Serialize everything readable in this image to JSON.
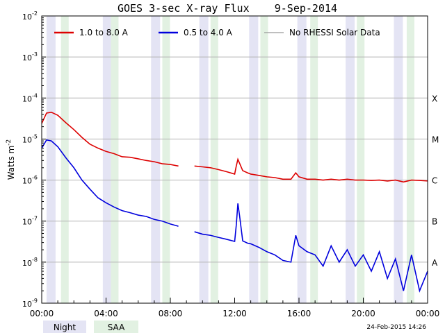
{
  "chart_data": {
    "type": "line",
    "title": "GOES 3-sec X-ray Flux    9-Sep-2014",
    "ylabel": "Watts m",
    "ylabel_superscript": "-2",
    "ylim": [
      1e-09,
      0.01
    ],
    "yscale": "log",
    "xlim_hours": [
      0,
      24
    ],
    "x_tick_labels": [
      "00:00",
      "04:00",
      "08:00",
      "12:00",
      "16:00",
      "20:00",
      "00:00"
    ],
    "y_tick_labels": [
      {
        "base": "10",
        "exp": "-9",
        "value": 1e-09
      },
      {
        "base": "10",
        "exp": "-8",
        "value": 1e-08
      },
      {
        "base": "10",
        "exp": "-7",
        "value": 1e-07
      },
      {
        "base": "10",
        "exp": "-6",
        "value": 1e-06
      },
      {
        "base": "10",
        "exp": "-5",
        "value": 1e-05
      },
      {
        "base": "10",
        "exp": "-4",
        "value": 0.0001
      },
      {
        "base": "10",
        "exp": "-3",
        "value": 0.001
      },
      {
        "base": "10",
        "exp": "-2",
        "value": 0.01
      }
    ],
    "flare_classes": [
      {
        "label": "A",
        "value": 1e-08
      },
      {
        "label": "B",
        "value": 1e-07
      },
      {
        "label": "C",
        "value": 1e-06
      },
      {
        "label": "M",
        "value": 1e-05
      },
      {
        "label": "X",
        "value": 0.0001
      }
    ],
    "grid": true,
    "legend_position": "top",
    "series": [
      {
        "name": "1.0 to 8.0 A",
        "color": "#dd0000",
        "x": [
          0.0,
          0.3,
          0.6,
          1.0,
          1.5,
          2.0,
          2.5,
          3.0,
          3.5,
          4.0,
          4.5,
          5.0,
          5.5,
          6.0,
          6.5,
          7.0,
          7.5,
          8.0,
          8.5,
          9.5,
          10.0,
          10.5,
          11.0,
          11.5,
          12.0,
          12.1,
          12.2,
          12.3,
          12.5,
          12.8,
          13.0,
          13.5,
          14.0,
          14.5,
          15.0,
          15.5,
          15.8,
          16.0,
          16.5,
          17.0,
          17.5,
          18.0,
          18.5,
          19.0,
          19.5,
          20.0,
          20.5,
          21.0,
          21.5,
          22.0,
          22.5,
          23.0,
          23.5,
          24.0
        ],
        "y": [
          2.4e-05,
          4.3e-05,
          4.5e-05,
          3.8e-05,
          2.5e-05,
          1.7e-05,
          1.1e-05,
          7.5e-06,
          6e-06,
          5e-06,
          4.4e-06,
          3.7e-06,
          3.6e-06,
          3.3e-06,
          3e-06,
          2.8e-06,
          2.5e-06,
          2.4e-06,
          2.2e-06,
          2.2e-06,
          2.1e-06,
          2e-06,
          1.8e-06,
          1.6e-06,
          1.4e-06,
          2.2e-06,
          3.2e-06,
          2.6e-06,
          1.7e-06,
          1.5e-06,
          1.4e-06,
          1.3e-06,
          1.2e-06,
          1.15e-06,
          1.05e-06,
          1.05e-06,
          1.5e-06,
          1.2e-06,
          1.05e-06,
          1.05e-06,
          1e-06,
          1.05e-06,
          1e-06,
          1.05e-06,
          1e-06,
          1e-06,
          9.8e-07,
          1e-06,
          9.5e-07,
          1e-06,
          9e-07,
          1e-06,
          9.8e-07,
          9.5e-07
        ]
      },
      {
        "name": "0.5 to 4.0 A",
        "color": "#0000dd",
        "x": [
          0.0,
          0.3,
          0.6,
          1.0,
          1.5,
          2.0,
          2.5,
          3.0,
          3.5,
          4.0,
          4.5,
          5.0,
          5.5,
          6.0,
          6.5,
          7.0,
          7.5,
          8.0,
          8.5,
          9.5,
          10.0,
          10.5,
          11.0,
          11.5,
          12.0,
          12.1,
          12.2,
          12.3,
          12.5,
          12.8,
          13.0,
          13.5,
          14.0,
          14.5,
          15.0,
          15.5,
          15.8,
          16.0,
          16.5,
          17.0,
          17.5,
          18.0,
          18.5,
          19.0,
          19.5,
          20.0,
          20.5,
          21.0,
          21.5,
          22.0,
          22.5,
          23.0,
          23.5,
          24.0
        ],
        "y": [
          6e-06,
          9.5e-06,
          9e-06,
          6.5e-06,
          3.5e-06,
          2e-06,
          1e-06,
          6e-07,
          3.7e-07,
          2.8e-07,
          2.2e-07,
          1.8e-07,
          1.6e-07,
          1.4e-07,
          1.3e-07,
          1.1e-07,
          1e-07,
          8.5e-08,
          7.5e-08,
          5.5e-08,
          4.8e-08,
          4.5e-08,
          4e-08,
          3.6e-08,
          3.2e-08,
          8e-08,
          2.7e-07,
          1.4e-07,
          3.3e-08,
          2.9e-08,
          2.8e-08,
          2.3e-08,
          1.8e-08,
          1.5e-08,
          1.1e-08,
          1e-08,
          4.5e-08,
          2.5e-08,
          1.8e-08,
          1.5e-08,
          8e-09,
          2.5e-08,
          1e-08,
          2e-08,
          8e-09,
          1.5e-08,
          6e-09,
          1.8e-08,
          4e-09,
          1.2e-08,
          2e-09,
          1.5e-08,
          2e-09,
          6e-09
        ]
      },
      {
        "name": "No RHESSI Solar Data",
        "color": "#999999"
      }
    ],
    "shaded_bands": {
      "night": {
        "label": "Night",
        "color": "#e4e4f4"
      },
      "saa": {
        "label": "SAA",
        "color": "#e2f1e2"
      }
    },
    "footer_date": "24-Feb-2015 14:26"
  }
}
